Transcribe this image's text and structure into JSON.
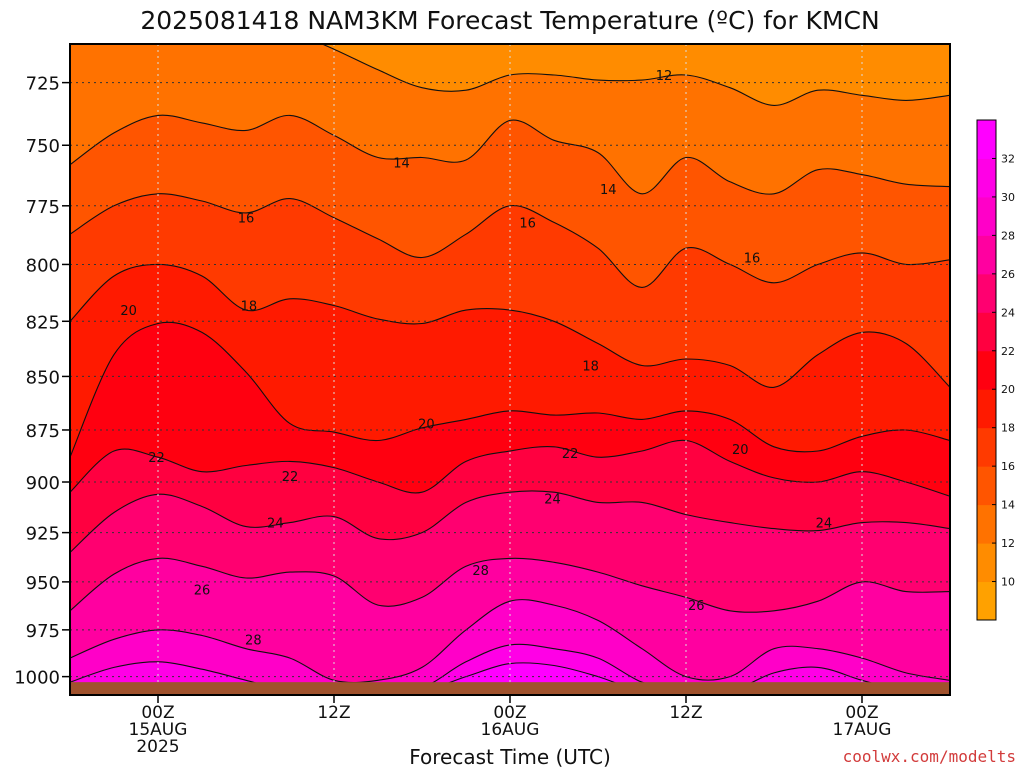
{
  "chart_data": {
    "type": "heatmap",
    "title": "2025081418 NAM3KM Forecast Temperature (ºC) for KMCN",
    "xlabel": "Forecast Time (UTC)",
    "ylabel": "",
    "credit": "coolwx.com/modelts",
    "y_axis": {
      "scale": "log-pressure",
      "range": [
        1010,
        710
      ],
      "ticks": [
        725,
        750,
        775,
        800,
        825,
        850,
        875,
        900,
        925,
        950,
        975,
        1000
      ],
      "gridlines": true
    },
    "x_axis": {
      "range_hours": [
        0,
        60
      ],
      "ticks": [
        {
          "hour": 6,
          "lines": [
            "00Z",
            "15AUG",
            "2025"
          ]
        },
        {
          "hour": 18,
          "lines": [
            "12Z"
          ]
        },
        {
          "hour": 30,
          "lines": [
            "00Z",
            "16AUG"
          ]
        },
        {
          "hour": 42,
          "lines": [
            "12Z"
          ]
        },
        {
          "hour": 54,
          "lines": [
            "00Z",
            "17AUG"
          ]
        }
      ],
      "gridlines": true
    },
    "colorbar": {
      "levels": [
        8,
        10,
        12,
        14,
        16,
        18,
        20,
        22,
        24,
        26,
        28,
        30,
        32,
        34
      ],
      "labels": [
        10,
        12,
        14,
        16,
        18,
        20,
        22,
        24,
        26,
        28,
        30,
        32
      ],
      "colors": [
        "#ffa100",
        "#ff8c00",
        "#ff7200",
        "#ff5500",
        "#ff3a00",
        "#ff1a00",
        "#ff0010",
        "#ff0040",
        "#ff0070",
        "#ff00a0",
        "#ff00c8",
        "#ff00e6",
        "#ff00ff"
      ]
    },
    "contour_interval": 2,
    "x": [
      0,
      3,
      6,
      9,
      12,
      15,
      18,
      21,
      24,
      27,
      30,
      33,
      36,
      39,
      42,
      45,
      48,
      51,
      54,
      57,
      60
    ],
    "isotherms": [
      {
        "value": 12,
        "pressure": [
          707,
          703,
          702,
          702,
          700,
          705,
          712,
          720,
          727,
          728,
          722,
          722,
          724,
          724,
          722,
          727,
          734,
          728,
          730,
          732,
          730
        ]
      },
      {
        "value": 14,
        "pressure": [
          758,
          745,
          738,
          741,
          744,
          738,
          746,
          755,
          755,
          756,
          740,
          748,
          753,
          770,
          755,
          765,
          770,
          760,
          762,
          766,
          767
        ]
      },
      {
        "value": 16,
        "pressure": [
          787,
          775,
          770,
          773,
          778,
          772,
          780,
          789,
          797,
          787,
          775,
          782,
          793,
          810,
          793,
          800,
          808,
          800,
          795,
          800,
          798
        ]
      },
      {
        "value": 18,
        "pressure": [
          825,
          805,
          800,
          805,
          820,
          815,
          818,
          824,
          826,
          820,
          820,
          825,
          835,
          845,
          842,
          845,
          855,
          840,
          830,
          835,
          855
        ]
      },
      {
        "value": 20,
        "pressure": [
          888,
          840,
          826,
          830,
          848,
          872,
          876,
          880,
          874,
          870,
          866,
          868,
          867,
          870,
          866,
          870,
          883,
          885,
          878,
          875,
          880
        ]
      },
      {
        "value": 22,
        "pressure": [
          905,
          885,
          888,
          895,
          892,
          890,
          893,
          900,
          905,
          890,
          885,
          883,
          888,
          885,
          880,
          890,
          898,
          900,
          895,
          900,
          907
        ]
      },
      {
        "value": 24,
        "pressure": [
          935,
          915,
          906,
          912,
          922,
          920,
          917,
          928,
          925,
          910,
          905,
          905,
          910,
          910,
          916,
          920,
          923,
          924,
          920,
          920,
          923
        ]
      },
      {
        "value": 26,
        "pressure": [
          965,
          946,
          938,
          942,
          948,
          945,
          947,
          962,
          958,
          942,
          938,
          940,
          945,
          952,
          958,
          965,
          965,
          960,
          950,
          955,
          955
        ]
      },
      {
        "value": 28,
        "pressure": [
          990,
          980,
          975,
          978,
          985,
          990,
          1002,
          1002,
          995,
          975,
          960,
          962,
          970,
          985,
          1000,
          1000,
          985,
          985,
          990,
          998,
          1002
        ]
      },
      {
        "value": 30,
        "pressure": [
          1003,
          995,
          992,
          996,
          1002,
          1008,
          1008,
          1008,
          1006,
          992,
          983,
          985,
          990,
          1003,
          1008,
          1008,
          998,
          995,
          1002,
          1008,
          1008
        ]
      },
      {
        "value": 32,
        "pressure": [
          1008,
          1008,
          1008,
          1008,
          1008,
          1008,
          1008,
          1008,
          1008,
          1000,
          993,
          994,
          1000,
          1008,
          1008,
          1008,
          1008,
          1008,
          1008,
          1008,
          1008
        ]
      }
    ],
    "contour_labels": [
      {
        "text": "12",
        "hour": 40.5,
        "pressure": 722
      },
      {
        "text": "14",
        "hour": 22.6,
        "pressure": 757
      },
      {
        "text": "14",
        "hour": 36.7,
        "pressure": 768
      },
      {
        "text": "16",
        "hour": 12.0,
        "pressure": 780
      },
      {
        "text": "16",
        "hour": 31.2,
        "pressure": 782
      },
      {
        "text": "16",
        "hour": 46.5,
        "pressure": 797
      },
      {
        "text": "18",
        "hour": 12.2,
        "pressure": 818
      },
      {
        "text": "18",
        "hour": 35.5,
        "pressure": 845
      },
      {
        "text": "20",
        "hour": 4.0,
        "pressure": 820
      },
      {
        "text": "20",
        "hour": 24.3,
        "pressure": 872
      },
      {
        "text": "20",
        "hour": 45.7,
        "pressure": 884
      },
      {
        "text": "22",
        "hour": 5.9,
        "pressure": 888
      },
      {
        "text": "22",
        "hour": 15.0,
        "pressure": 897
      },
      {
        "text": "22",
        "hour": 34.1,
        "pressure": 886
      },
      {
        "text": "24",
        "hour": 14.0,
        "pressure": 920
      },
      {
        "text": "24",
        "hour": 32.9,
        "pressure": 908
      },
      {
        "text": "24",
        "hour": 51.4,
        "pressure": 920
      },
      {
        "text": "26",
        "hour": 9.0,
        "pressure": 954
      },
      {
        "text": "26",
        "hour": 42.7,
        "pressure": 962
      },
      {
        "text": "28",
        "hour": 12.5,
        "pressure": 980
      },
      {
        "text": "28",
        "hour": 28.0,
        "pressure": 944
      }
    ],
    "ground": {
      "pressure": 1003,
      "color": "#a0522d"
    }
  }
}
